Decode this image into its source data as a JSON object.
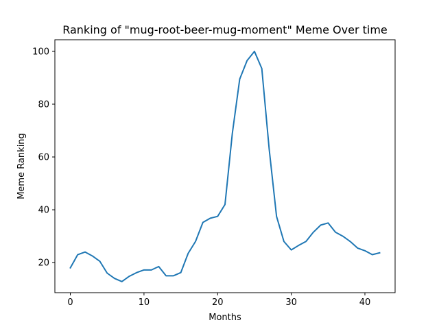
{
  "chart_data": {
    "type": "line",
    "title": "Ranking of \"mug-root-beer-mug-moment\" Meme Over time",
    "xlabel": "Months",
    "ylabel": "Meme Ranking",
    "xlim": [
      -2.1,
      44.1
    ],
    "ylim": [
      8.6,
      104.4
    ],
    "xticks": [
      0,
      10,
      20,
      30,
      40
    ],
    "yticks": [
      20,
      40,
      60,
      80,
      100
    ],
    "grid": false,
    "line_color": "#1f77b4",
    "x": [
      0,
      1,
      2,
      3,
      4,
      5,
      6,
      7,
      8,
      9,
      10,
      11,
      12,
      13,
      14,
      15,
      16,
      17,
      18,
      19,
      20,
      21,
      22,
      23,
      24,
      25,
      26,
      27,
      28,
      29,
      30,
      31,
      32,
      33,
      34,
      35,
      36,
      37,
      38,
      39,
      40,
      41,
      42
    ],
    "values": [
      18,
      23,
      24,
      22.5,
      20.5,
      16,
      14,
      12.8,
      14.8,
      16.2,
      17.2,
      17.2,
      18.5,
      15,
      15,
      16.2,
      23.5,
      28,
      35.2,
      36.8,
      37.5,
      42,
      69,
      89.5,
      96.5,
      100,
      93.5,
      63,
      37.5,
      28,
      24.8,
      26.5,
      28,
      31.5,
      34.2,
      35,
      31.5,
      30,
      28,
      25.5,
      24.5,
      23,
      23.7
    ]
  }
}
